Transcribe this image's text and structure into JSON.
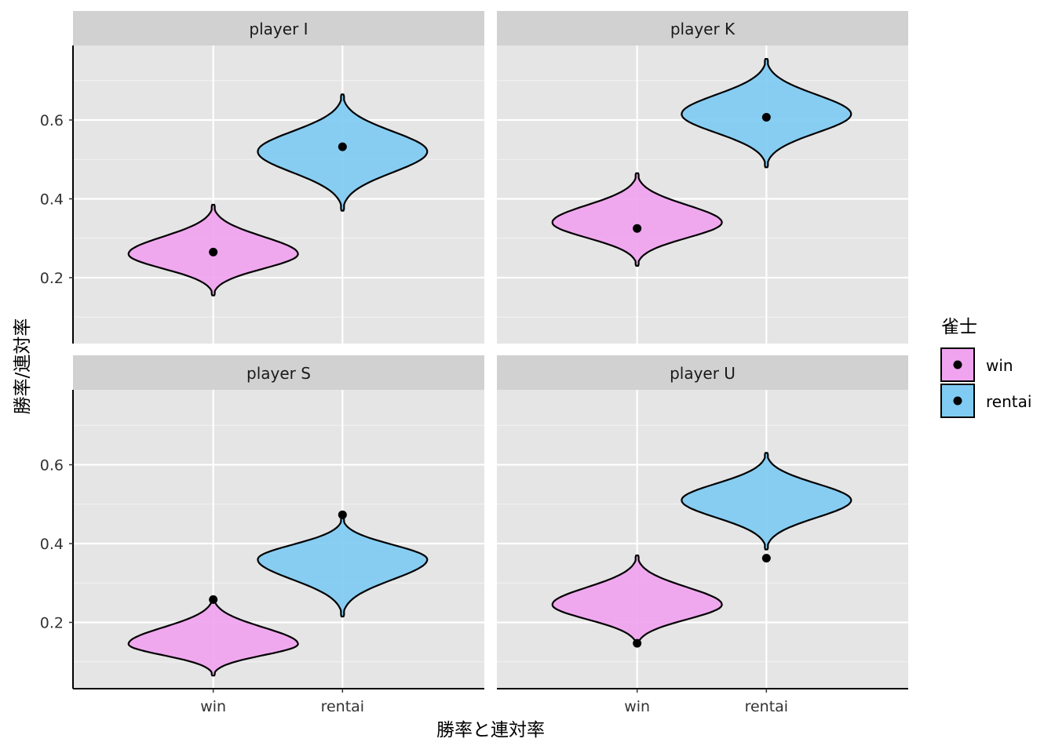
{
  "chart_data": {
    "type": "violin",
    "xlabel": "勝率と連対率",
    "ylabel": "勝率/連対率",
    "categories": [
      "win",
      "rentai"
    ],
    "ylim": [
      0.05,
      0.8
    ],
    "yticks": [
      0.2,
      0.4,
      0.6
    ],
    "grid": true,
    "legend": {
      "title": "雀士",
      "position": "right",
      "entries": [
        {
          "label": "win",
          "color": "#f0a3ef"
        },
        {
          "label": "rentai",
          "color": "#7fcbf3"
        }
      ]
    },
    "colors": {
      "win": "#f0a3ef",
      "rentai": "#7fcbf3",
      "panel_bg": "#e5e5e5",
      "strip_bg": "#d1d1d1"
    },
    "panels": [
      {
        "title": "player I",
        "violins": [
          {
            "category": "win",
            "min": 0.155,
            "max": 0.385,
            "mode": 0.26,
            "point": 0.265
          },
          {
            "category": "rentai",
            "min": 0.37,
            "max": 0.665,
            "mode": 0.52,
            "point": 0.532
          }
        ]
      },
      {
        "title": "player K",
        "violins": [
          {
            "category": "win",
            "min": 0.23,
            "max": 0.465,
            "mode": 0.34,
            "point": 0.325
          },
          {
            "category": "rentai",
            "min": 0.48,
            "max": 0.755,
            "mode": 0.615,
            "point": 0.607
          }
        ]
      },
      {
        "title": "player S",
        "violins": [
          {
            "category": "win",
            "min": 0.065,
            "max": 0.265,
            "mode": 0.145,
            "point": 0.258
          },
          {
            "category": "rentai",
            "min": 0.215,
            "max": 0.465,
            "mode": 0.36,
            "point": 0.473
          }
        ]
      },
      {
        "title": "player U",
        "violins": [
          {
            "category": "win",
            "min": 0.14,
            "max": 0.37,
            "mode": 0.245,
            "point": 0.147
          },
          {
            "category": "rentai",
            "min": 0.385,
            "max": 0.63,
            "mode": 0.51,
            "point": 0.363
          }
        ]
      }
    ]
  }
}
